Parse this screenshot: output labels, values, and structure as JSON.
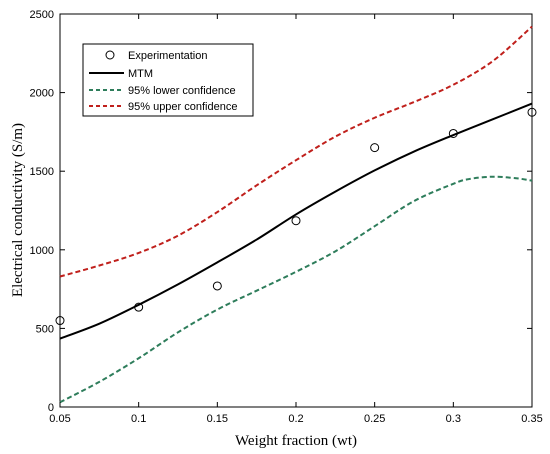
{
  "chart_data": {
    "type": "line",
    "title": "",
    "xlabel": "Weight fraction (wt)",
    "ylabel": "Electrical conductivity (S/m)",
    "xlim": [
      0.05,
      0.35
    ],
    "ylim": [
      0,
      2500
    ],
    "xticks": [
      0.05,
      0.1,
      0.15,
      0.2,
      0.25,
      0.3,
      0.35
    ],
    "xtick_labels": [
      "0.05",
      "0.1",
      "0.15",
      "0.2",
      "0.25",
      "0.3",
      "0.35"
    ],
    "yticks": [
      0,
      500,
      1000,
      1500,
      2000,
      2500
    ],
    "ytick_labels": [
      "0",
      "500",
      "1000",
      "1500",
      "2000",
      "2500"
    ],
    "grid": false,
    "legend_position": "top-left",
    "series": [
      {
        "name": "Experimentation",
        "kind": "marker",
        "marker": "open-circle",
        "color": "#000000",
        "x": [
          0.05,
          0.1,
          0.15,
          0.2,
          0.25,
          0.3,
          0.35
        ],
        "y": [
          550,
          635,
          770,
          1185,
          1650,
          1740,
          1875
        ]
      },
      {
        "name": "MTM",
        "kind": "line",
        "style": "solid",
        "color": "#000000",
        "x": [
          0.05,
          0.075,
          0.1,
          0.125,
          0.15,
          0.175,
          0.2,
          0.225,
          0.25,
          0.275,
          0.3,
          0.325,
          0.35
        ],
        "y": [
          435,
          530,
          650,
          780,
          920,
          1065,
          1225,
          1370,
          1505,
          1625,
          1730,
          1830,
          1930
        ]
      },
      {
        "name": "95% lower confidence",
        "kind": "line",
        "style": "dashed",
        "color": "#2e7d5b",
        "x": [
          0.05,
          0.075,
          0.1,
          0.125,
          0.15,
          0.175,
          0.2,
          0.225,
          0.25,
          0.275,
          0.3,
          0.31,
          0.325,
          0.34,
          0.35
        ],
        "y": [
          30,
          160,
          310,
          475,
          620,
          740,
          860,
          990,
          1150,
          1310,
          1420,
          1450,
          1465,
          1455,
          1440
        ]
      },
      {
        "name": "95% upper confidence",
        "kind": "line",
        "style": "dashed",
        "color": "#c0201c",
        "x": [
          0.05,
          0.075,
          0.1,
          0.125,
          0.15,
          0.175,
          0.2,
          0.225,
          0.25,
          0.275,
          0.3,
          0.325,
          0.35
        ],
        "y": [
          830,
          900,
          980,
          1090,
          1240,
          1410,
          1570,
          1720,
          1840,
          1940,
          2050,
          2200,
          2420
        ]
      }
    ]
  }
}
